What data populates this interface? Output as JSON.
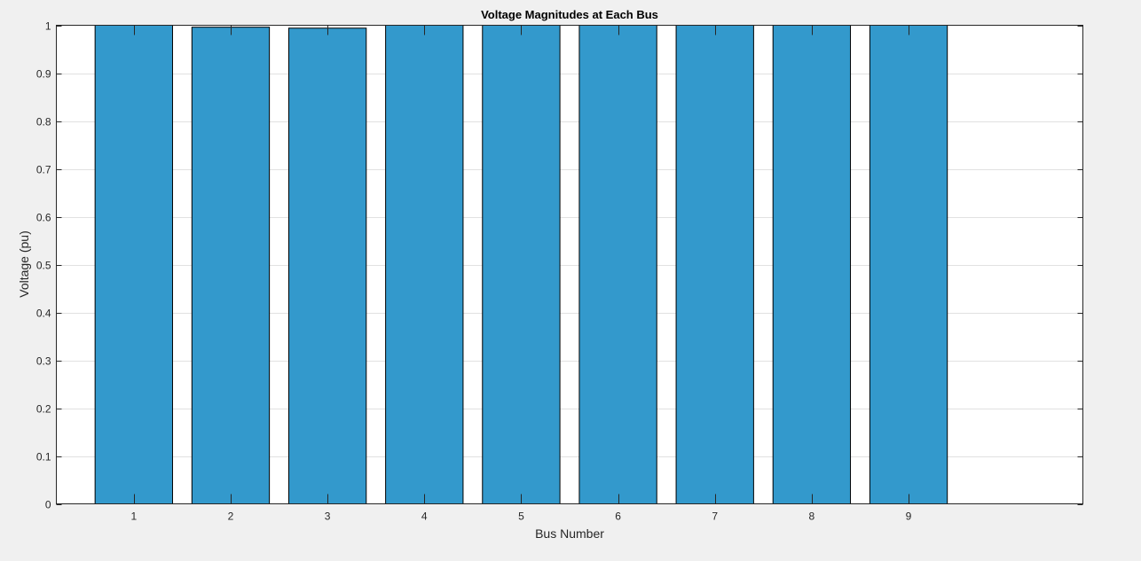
{
  "chart_data": {
    "type": "bar",
    "title": "Voltage Magnitudes at Each Bus",
    "xlabel": "Bus Number",
    "ylabel": "Voltage (pu)",
    "categories": [
      "1",
      "2",
      "3",
      "4",
      "5",
      "6",
      "7",
      "8",
      "9"
    ],
    "values": [
      1.0,
      0.996,
      0.994,
      1.0,
      1.0,
      1.0,
      1.0,
      1.0,
      1.0
    ],
    "xlim": [
      0.2,
      10.8
    ],
    "ylim": [
      0,
      1
    ],
    "yticks": [
      "0",
      "0.1",
      "0.2",
      "0.3",
      "0.4",
      "0.5",
      "0.6",
      "0.7",
      "0.8",
      "0.9",
      "1"
    ],
    "grid": "y",
    "bar_color": "#3399cc",
    "bar_edge_color": "#000000"
  }
}
